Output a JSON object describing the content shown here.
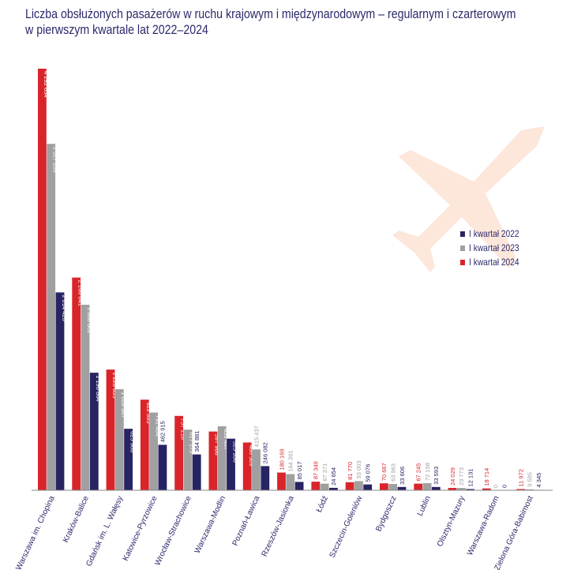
{
  "title_line1": "Liczba obsłużonych pasażerów w ruchu krajowym i międzynarodowym – regularnym i czarterowym",
  "title_line2": "w pierwszym kwartale lat 2022–2024",
  "colors": {
    "2022": "#262463",
    "2023": "#a0a0a0",
    "2024": "#d9252a",
    "watermark": "#fde6da"
  },
  "watermark_icon": "airplane-icon",
  "chart_data": {
    "type": "bar",
    "title": "Liczba obsłużonych pasażerów w ruchu krajowym i międzynarodowym – regularnym i czarterowym w pierwszym kwartale lat 2022–2024",
    "categories": [
      "Warszawa im. Chopina",
      "Kraków-Balice",
      "Gdańsk im. L. Wałęsy",
      "Katowice-Pyrzowice",
      "Wrocław-Strachowice",
      "Warszawa-Modlin",
      "Poznań-Ławica",
      "Rzeszów-Jasionka",
      "Łódź",
      "Szczecin-Goleniów",
      "Bydgoszcz",
      "Lublin",
      "Olsztyn-Mazury",
      "Warszawa-Radom",
      "Zielona Góra-Babimost"
    ],
    "series": [
      {
        "name": "I kwartał 2024",
        "values": [
          4292654,
          2166041,
          1228835,
          922335,
          757218,
          597986,
          486509,
          180169,
          87349,
          81770,
          70667,
          67245,
          24029,
          18714,
          11972
        ]
      },
      {
        "name": "I kwartał 2023",
        "values": [
          3527208,
          1888802,
          1028367,
          791464,
          617173,
          651497,
          415437,
          164391,
          67371,
          93003,
          63963,
          72158,
          23773,
          0,
          9595
        ]
      },
      {
        "name": "I kwartał 2022",
        "values": [
          2014426,
          1196864,
          625988,
          462915,
          364881,
          525336,
          246082,
          85017,
          24654,
          59076,
          33606,
          33593,
          12131,
          0,
          4345
        ]
      }
    ],
    "legend": [
      "I kwartał 2022",
      "I kwartał 2023",
      "I kwartał 2024"
    ],
    "legend_position": "right",
    "grid": false,
    "ylim": [
      0,
      4300000
    ]
  }
}
